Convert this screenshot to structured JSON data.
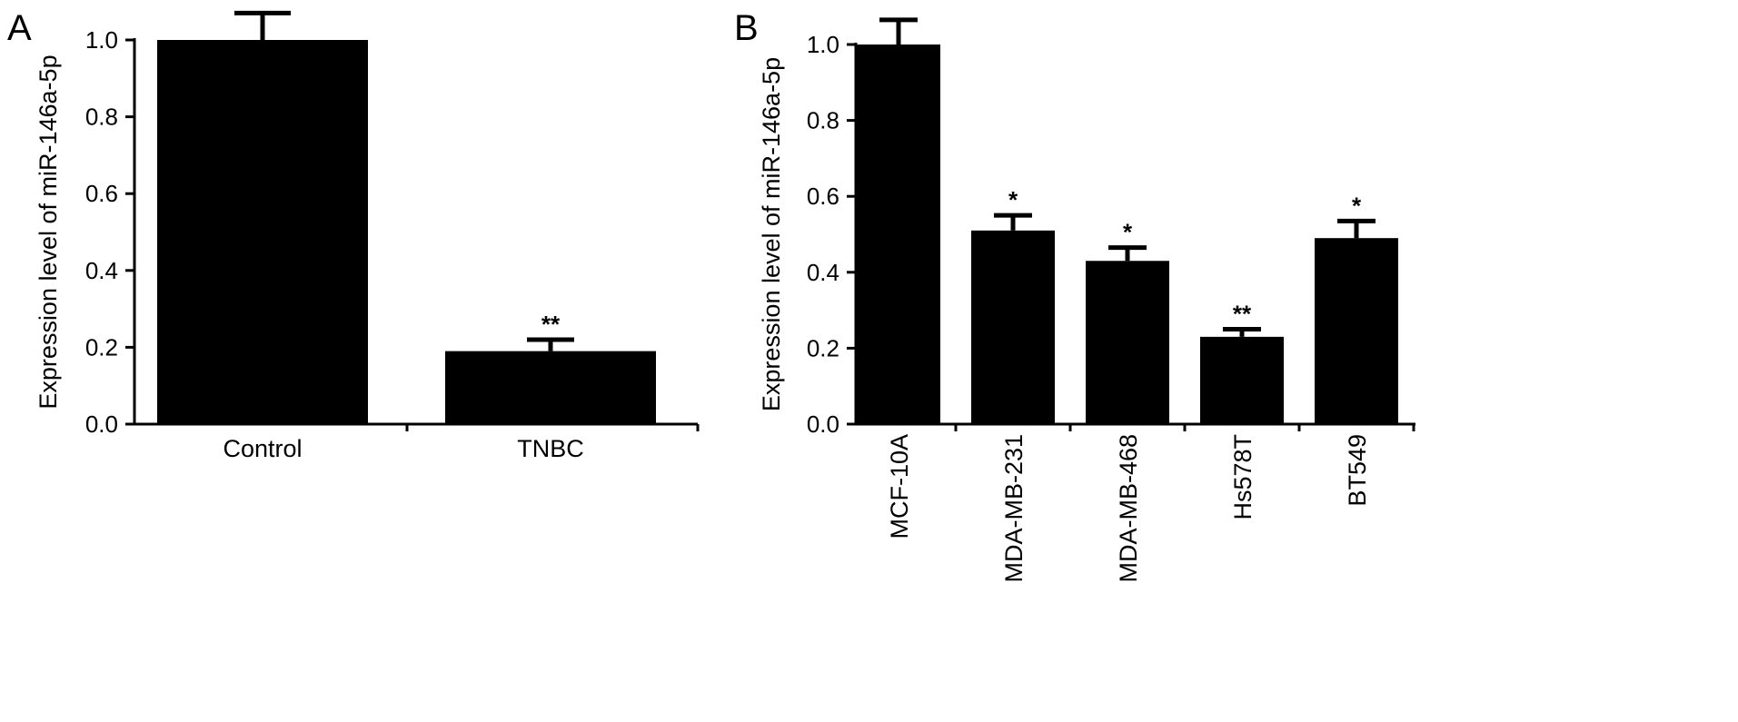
{
  "chart_data": [
    {
      "panel_label": "A",
      "type": "bar",
      "categories": [
        "Control",
        "TNBC"
      ],
      "values": [
        1.0,
        0.19
      ],
      "errors": [
        0.07,
        0.03
      ],
      "significance": [
        "",
        "**"
      ],
      "ylabel": "Expression level of miR-146a-5p",
      "xlabel": "",
      "ylim": [
        0.0,
        1.0
      ],
      "yticks": [
        "0.0",
        "0.2",
        "0.4",
        "0.6",
        "0.8",
        "1.0"
      ],
      "bar_color": "#000000",
      "grid": false,
      "legend": "none"
    },
    {
      "panel_label": "B",
      "type": "bar",
      "categories": [
        "MCF-10A",
        "MDA-MB-231",
        "MDA-MB-468",
        "Hs578T",
        "BT549"
      ],
      "values": [
        1.0,
        0.51,
        0.43,
        0.23,
        0.49
      ],
      "errors": [
        0.065,
        0.04,
        0.035,
        0.02,
        0.045
      ],
      "significance": [
        "",
        "*",
        "*",
        "**",
        "*"
      ],
      "ylabel": "Expression level of miR-146a-5p",
      "xlabel": "",
      "ylim": [
        0.0,
        1.0
      ],
      "yticks": [
        "0.0",
        "0.2",
        "0.4",
        "0.6",
        "0.8",
        "1.0"
      ],
      "bar_color": "#000000",
      "grid": false,
      "legend": "none"
    }
  ]
}
